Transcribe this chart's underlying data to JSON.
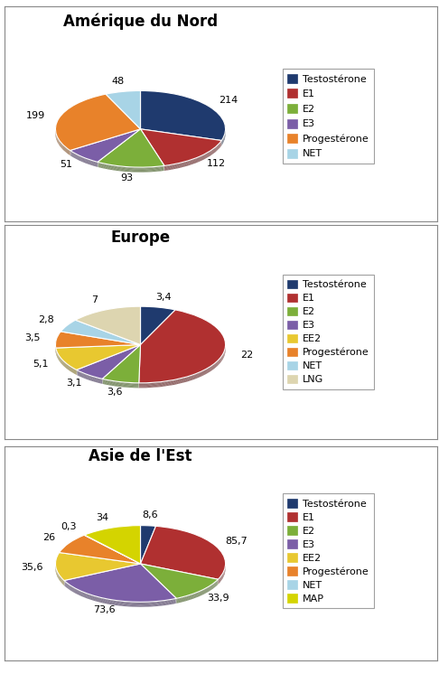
{
  "chart1": {
    "title": "Amérique du Nord",
    "labels": [
      "Testostérone",
      "E1",
      "E2",
      "E3",
      "Progestérone",
      "NET"
    ],
    "values": [
      214,
      112,
      93,
      51,
      199,
      48
    ],
    "colors": [
      "#1F3A6E",
      "#B03030",
      "#7CAF3A",
      "#7B5EA7",
      "#E8822A",
      "#A8D4E6"
    ],
    "legend_labels": [
      "Testostérone",
      "E1",
      "E2",
      "E3",
      "Progestérone",
      "NET"
    ],
    "start_angle": 90,
    "counterclock": false
  },
  "chart2": {
    "title": "Europe",
    "labels": [
      "Testostérone",
      "E1",
      "E2",
      "E3",
      "EE2",
      "Progestérone",
      "NET",
      "LNG"
    ],
    "values": [
      3.4,
      22,
      3.6,
      3.1,
      5.1,
      3.5,
      2.8,
      7
    ],
    "colors": [
      "#1F3A6E",
      "#B03030",
      "#7CAF3A",
      "#7B5EA7",
      "#E8C830",
      "#E8822A",
      "#A8D4E6",
      "#DDD5B0"
    ],
    "legend_labels": [
      "Testostérone",
      "E1",
      "E2",
      "E3",
      "EE2",
      "Progestérone",
      "NET",
      "LNG"
    ],
    "start_angle": 90,
    "counterclock": false
  },
  "chart3": {
    "title": "Asie de l'Est",
    "labels": [
      "Testostérone",
      "E1",
      "E2",
      "E3",
      "EE2",
      "Progestérone",
      "NET",
      "MAP"
    ],
    "values": [
      8.6,
      85.7,
      33.9,
      73.6,
      35.6,
      26,
      0.3,
      34
    ],
    "colors": [
      "#1F3A6E",
      "#B03030",
      "#7CAF3A",
      "#7B5EA7",
      "#E8C830",
      "#E8822A",
      "#A8D4E6",
      "#D4D400"
    ],
    "legend_labels": [
      "Testostérone",
      "E1",
      "E2",
      "E3",
      "EE2",
      "Progestérone",
      "NET",
      "MAP"
    ],
    "start_angle": 90,
    "counterclock": false
  },
  "bg_color": "#FFFFFF",
  "title_fontsize": 12,
  "label_fontsize": 8,
  "legend_fontsize": 8,
  "box_border_color": "#AAAAAA"
}
